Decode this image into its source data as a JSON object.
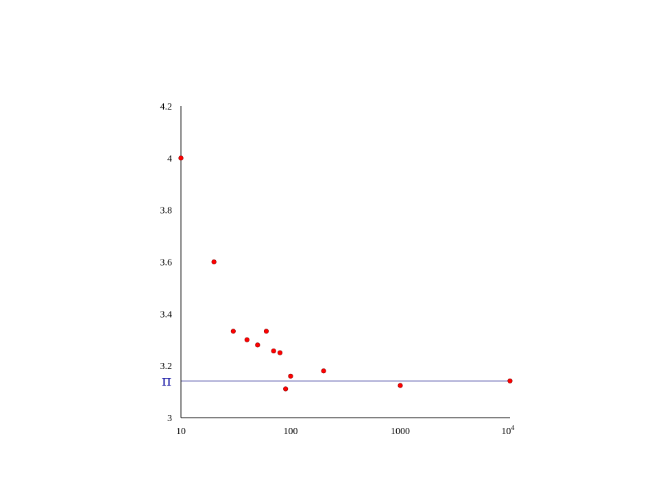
{
  "chart_data": {
    "type": "scatter",
    "title": "",
    "xlabel": "",
    "ylabel": "",
    "x_scale": "log",
    "xlim": [
      10,
      10000
    ],
    "ylim": [
      3,
      4.2
    ],
    "grid": false,
    "legend": "none",
    "x_ticks": [
      {
        "value": 10,
        "label": "10"
      },
      {
        "value": 100,
        "label": "100"
      },
      {
        "value": 1000,
        "label": "1000"
      },
      {
        "value": 10000,
        "base": "10",
        "exp": "4"
      }
    ],
    "y_ticks": [
      {
        "value": 3,
        "label": "3"
      },
      {
        "value": 3.2,
        "label": "3.2"
      },
      {
        "value": 3.4,
        "label": "3.4"
      },
      {
        "value": 3.6,
        "label": "3.6"
      },
      {
        "value": 3.8,
        "label": "3.8"
      },
      {
        "value": 4,
        "label": "4"
      },
      {
        "value": 4.2,
        "label": "4.2"
      }
    ],
    "reference_line": {
      "y": 3.14159,
      "label": "π",
      "color": "#1a1a8c"
    },
    "series": [
      {
        "color": "#ff0000",
        "points": [
          {
            "x": 10,
            "y": 4.0
          },
          {
            "x": 20,
            "y": 3.6
          },
          {
            "x": 30,
            "y": 3.333
          },
          {
            "x": 40,
            "y": 3.3
          },
          {
            "x": 50,
            "y": 3.28
          },
          {
            "x": 60,
            "y": 3.333
          },
          {
            "x": 70,
            "y": 3.257
          },
          {
            "x": 80,
            "y": 3.25
          },
          {
            "x": 90,
            "y": 3.111
          },
          {
            "x": 100,
            "y": 3.16
          },
          {
            "x": 200,
            "y": 3.18
          },
          {
            "x": 1000,
            "y": 3.124
          },
          {
            "x": 10000,
            "y": 3.1416
          }
        ]
      }
    ]
  }
}
